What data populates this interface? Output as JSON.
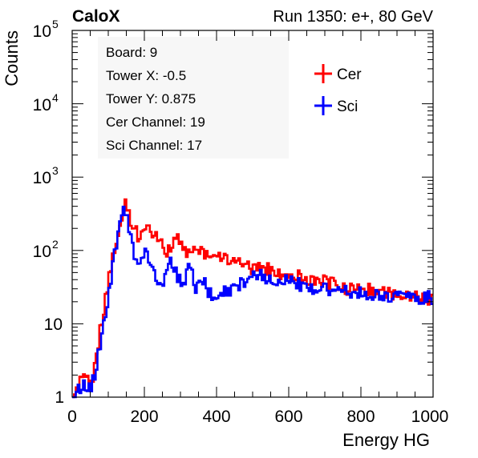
{
  "header": {
    "brand": "CaloX",
    "run_label": "Run 1350: e+, 80 GeV"
  },
  "info_box": {
    "lines": [
      "Board: 9",
      "Tower X: -0.5",
      "Tower Y: 0.875",
      "Cer Channel: 19",
      "Sci Channel: 17"
    ]
  },
  "chart_data": {
    "type": "line",
    "style": "histogram-step",
    "xlabel": "Energy HG",
    "ylabel": "Counts",
    "xlim": [
      0,
      1000
    ],
    "ylim": [
      1,
      100000
    ],
    "yscale": "log",
    "x_ticks": [
      "0",
      "200",
      "400",
      "600",
      "800",
      "1000"
    ],
    "y_ticks": [
      {
        "value": 1,
        "base": "1",
        "exp": ""
      },
      {
        "value": 10,
        "base": "10",
        "exp": ""
      },
      {
        "value": 100,
        "base": "10",
        "exp": "2"
      },
      {
        "value": 1000,
        "base": "10",
        "exp": "3"
      },
      {
        "value": 10000,
        "base": "10",
        "exp": "4"
      },
      {
        "value": 100000,
        "base": "10",
        "exp": "5"
      }
    ],
    "legend_position": "top-right",
    "series": [
      {
        "name": "Cer",
        "color": "#ff0000",
        "x": [
          0,
          20,
          40,
          50,
          60,
          70,
          80,
          90,
          100,
          110,
          120,
          130,
          140,
          145,
          150,
          160,
          170,
          180,
          190,
          200,
          210,
          220,
          230,
          240,
          250,
          260,
          270,
          280,
          290,
          300,
          310,
          320,
          330,
          340,
          350,
          360,
          380,
          400,
          420,
          440,
          460,
          480,
          500,
          520,
          540,
          560,
          580,
          600,
          620,
          640,
          660,
          680,
          700,
          720,
          740,
          760,
          780,
          800,
          820,
          840,
          860,
          880,
          900,
          920,
          940,
          960,
          980,
          1000
        ],
        "y": [
          1,
          1.5,
          2,
          1.5,
          3,
          6,
          12,
          25,
          45,
          80,
          150,
          250,
          380,
          430,
          400,
          260,
          190,
          160,
          170,
          200,
          210,
          180,
          150,
          130,
          110,
          100,
          110,
          130,
          150,
          140,
          110,
          90,
          95,
          110,
          100,
          90,
          80,
          75,
          80,
          70,
          75,
          65,
          55,
          60,
          55,
          50,
          45,
          42,
          45,
          40,
          40,
          35,
          38,
          35,
          32,
          30,
          32,
          28,
          30,
          26,
          27,
          25,
          26,
          24,
          25,
          22,
          23,
          20
        ]
      },
      {
        "name": "Sci",
        "color": "#0000ff",
        "x": [
          0,
          20,
          40,
          50,
          60,
          70,
          80,
          90,
          100,
          110,
          120,
          130,
          140,
          145,
          150,
          160,
          170,
          180,
          190,
          200,
          210,
          220,
          230,
          240,
          250,
          260,
          270,
          280,
          290,
          300,
          310,
          320,
          330,
          340,
          350,
          360,
          380,
          400,
          420,
          440,
          460,
          480,
          500,
          520,
          540,
          560,
          580,
          600,
          620,
          640,
          660,
          680,
          700,
          720,
          740,
          760,
          780,
          800,
          820,
          840,
          860,
          880,
          900,
          920,
          940,
          960,
          980,
          1000
        ],
        "y": [
          1,
          1.5,
          1.2,
          1.4,
          2,
          4,
          8,
          15,
          30,
          60,
          120,
          220,
          330,
          360,
          300,
          150,
          80,
          60,
          70,
          90,
          80,
          60,
          40,
          30,
          35,
          60,
          70,
          55,
          45,
          35,
          40,
          60,
          45,
          30,
          35,
          40,
          25,
          20,
          28,
          30,
          35,
          40,
          45,
          50,
          40,
          35,
          38,
          40,
          35,
          32,
          30,
          30,
          32,
          28,
          30,
          26,
          28,
          25,
          27,
          24,
          25,
          23,
          25,
          22,
          24,
          22,
          23,
          22
        ]
      }
    ]
  }
}
